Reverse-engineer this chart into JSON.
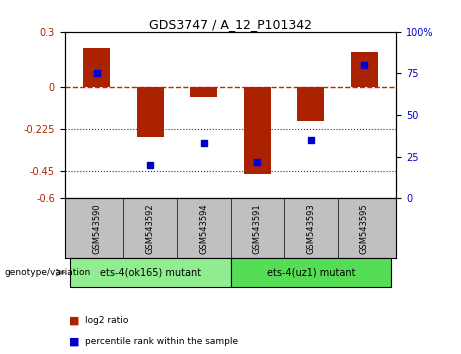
{
  "title": "GDS3747 / A_12_P101342",
  "samples": [
    "GSM543590",
    "GSM543592",
    "GSM543594",
    "GSM543591",
    "GSM543593",
    "GSM543595"
  ],
  "log2_ratio": [
    0.21,
    -0.27,
    -0.055,
    -0.47,
    -0.18,
    0.19
  ],
  "percentile_rank": [
    75,
    20,
    33,
    22,
    35,
    80
  ],
  "groups": [
    {
      "label": "ets-4(ok165) mutant",
      "indices": [
        0,
        1,
        2
      ],
      "color": "#90EE90"
    },
    {
      "label": "ets-4(uz1) mutant",
      "indices": [
        3,
        4,
        5
      ],
      "color": "#55DD55"
    }
  ],
  "ylim_left": [
    -0.6,
    0.3
  ],
  "ylim_right": [
    0,
    100
  ],
  "yticks_left": [
    0.3,
    0,
    -0.225,
    -0.45,
    -0.6
  ],
  "yticks_right": [
    100,
    75,
    50,
    25,
    0
  ],
  "bar_color": "#AA2200",
  "dot_color": "#0000CC",
  "zero_line_color": "#CC2200",
  "grid_line_color": "#333333",
  "bar_width": 0.5,
  "background_chart": "#FFFFFF",
  "background_label": "#C0C0C0",
  "genotype_label": "genotype/variation",
  "legend_labels": [
    "log2 ratio",
    "percentile rank within the sample"
  ]
}
